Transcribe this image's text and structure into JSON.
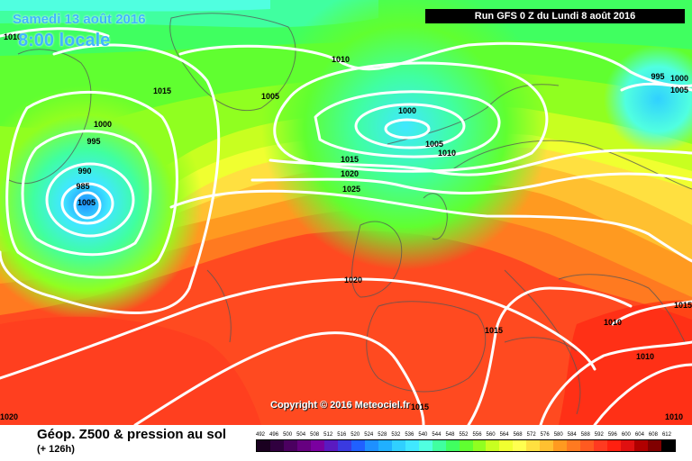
{
  "header": {
    "date_line": "Samedi 13 août 2016",
    "time_line": "8:00 locale",
    "run_info": "Run GFS 0 Z du Lundi 8 août 2016"
  },
  "copyright": "Copyright © 2016 Meteociel.fr",
  "footer": {
    "title": "Géop. Z500 & pression au sol",
    "subtitle": "(+ 126h)"
  },
  "isobar_labels": [
    "1015",
    "1010",
    "1005",
    "1000",
    "995",
    "990",
    "985",
    "1005",
    "995",
    "1000",
    "1005",
    "1010",
    "1015",
    "1020",
    "1025",
    "1020",
    "1015",
    "1010",
    "1005",
    "1000",
    "1010",
    "1015",
    "1010",
    "1020",
    "1010",
    "1015"
  ],
  "scale_labels": [
    "492",
    "496",
    "500",
    "504",
    "508",
    "512",
    "516",
    "520",
    "524",
    "528",
    "532",
    "536",
    "540",
    "544",
    "548",
    "552",
    "556",
    "560",
    "564",
    "568",
    "572",
    "576",
    "580",
    "584",
    "588",
    "592",
    "596",
    "600",
    "604",
    "608",
    "612"
  ],
  "scale_colors": [
    "#1a0020",
    "#30003f",
    "#4b0060",
    "#660080",
    "#7a00a0",
    "#5a1ac0",
    "#3a3ae0",
    "#2060ff",
    "#1e90ff",
    "#20b0ff",
    "#30d0ff",
    "#40e8ff",
    "#50ffe0",
    "#40ffa0",
    "#40ff60",
    "#60ff30",
    "#90ff20",
    "#c8ff20",
    "#f0ff30",
    "#ffff50",
    "#ffe040",
    "#ffc030",
    "#ff9a20",
    "#ff7a20",
    "#ff5a20",
    "#ff3a20",
    "#ff2010",
    "#e01010",
    "#b00000",
    "#800000",
    "#000000"
  ]
}
